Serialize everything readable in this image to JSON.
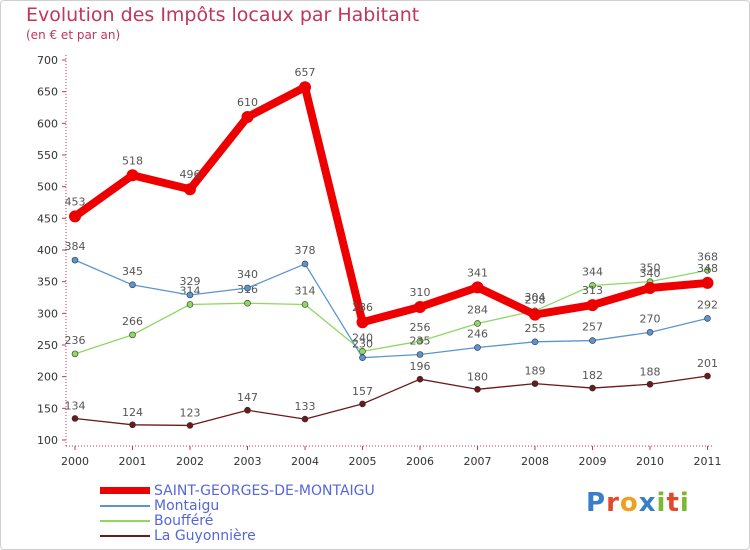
{
  "chart_data": {
    "type": "line",
    "title": "Evolution des Impôts locaux par Habitant",
    "subtitle": "(en € et par an)",
    "categories": [
      "2000",
      "2001",
      "2002",
      "2003",
      "2004",
      "2005",
      "2006",
      "2007",
      "2008",
      "2009",
      "2010",
      "2011"
    ],
    "ylim": [
      100,
      700
    ],
    "yticks": [
      100,
      150,
      200,
      250,
      300,
      350,
      400,
      450,
      500,
      550,
      600,
      650,
      700
    ],
    "grid": false,
    "legend_position": "bottom-left",
    "series": [
      {
        "name": "SAINT-GEORGES-DE-MONTAIGU",
        "color": "#ee0000",
        "values": [
          453,
          518,
          496,
          610,
          657,
          286,
          310,
          341,
          298,
          313,
          340,
          348
        ],
        "labels": [
          "453",
          "518",
          "496",
          "610",
          "657",
          "286",
          "310",
          "341",
          "298",
          "313",
          "340",
          "348"
        ]
      },
      {
        "name": "Montaigu",
        "color": "#5b95d0",
        "values": [
          384,
          345,
          329,
          340,
          378,
          230,
          235,
          246,
          255,
          257,
          270,
          292
        ],
        "labels": [
          "384",
          "345",
          "329",
          "340",
          "378",
          "230",
          "235",
          "246",
          "255",
          "257",
          "270",
          "292"
        ]
      },
      {
        "name": "Boufféré",
        "color": "#8fd860",
        "values": [
          236,
          266,
          314,
          316,
          314,
          240,
          256,
          284,
          304,
          344,
          350,
          368
        ],
        "labels": [
          "236",
          "266",
          "314",
          "316",
          "314",
          "240",
          "256",
          "284",
          "304",
          "344",
          "350",
          "368"
        ]
      },
      {
        "name": "La Guyonnière",
        "color": "#6b1a1a",
        "values": [
          134,
          124,
          123,
          147,
          133,
          157,
          196,
          180,
          189,
          182,
          188,
          201
        ],
        "labels": [
          "134",
          "124",
          "123",
          "147",
          "133",
          "157",
          "196",
          "180",
          "189",
          "182",
          "188",
          "201"
        ]
      }
    ]
  },
  "logo": {
    "text": "Proxiti",
    "letters": [
      "P",
      "r",
      "o",
      "x",
      "i",
      "t",
      "i"
    ],
    "colors": [
      "#3a7ec8",
      "#e24a2a",
      "#f0a020",
      "#3a7ec8",
      "#7cb830",
      "#e24a2a",
      "#7cb830"
    ]
  }
}
